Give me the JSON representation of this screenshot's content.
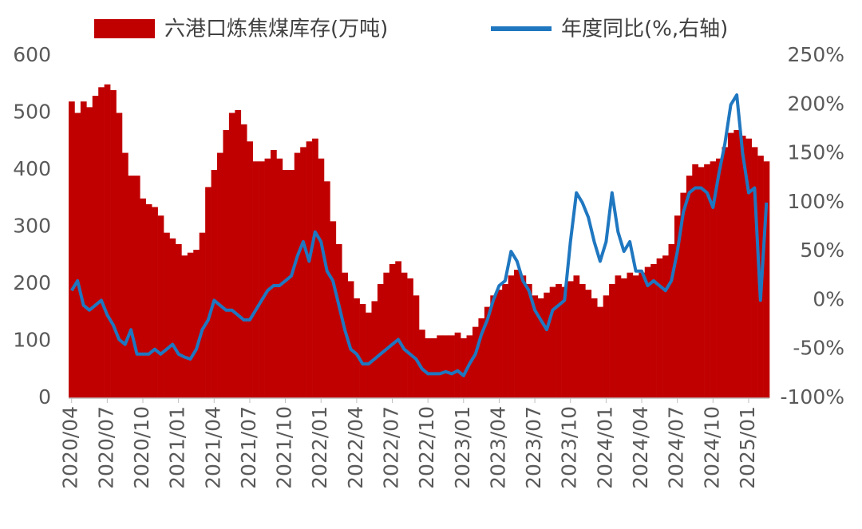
{
  "chart_data": {
    "type": "bar-line",
    "categories": [
      "2020/04",
      null,
      null,
      null,
      null,
      null,
      "2020/07",
      null,
      null,
      null,
      null,
      null,
      "2020/10",
      null,
      null,
      null,
      null,
      null,
      "2021/01",
      null,
      null,
      null,
      null,
      null,
      "2021/04",
      null,
      null,
      null,
      null,
      null,
      "2021/07",
      null,
      null,
      null,
      null,
      null,
      "2021/10",
      null,
      null,
      null,
      null,
      null,
      "2022/01",
      null,
      null,
      null,
      null,
      null,
      "2022/04",
      null,
      null,
      null,
      null,
      null,
      "2022/07",
      null,
      null,
      null,
      null,
      null,
      "2022/10",
      null,
      null,
      null,
      null,
      null,
      "2023/01",
      null,
      null,
      null,
      null,
      null,
      "2023/04",
      null,
      null,
      null,
      null,
      null,
      "2023/07",
      null,
      null,
      null,
      null,
      null,
      "2023/10",
      null,
      null,
      null,
      null,
      null,
      "2024/01",
      null,
      null,
      null,
      null,
      null,
      "2024/04",
      null,
      null,
      null,
      null,
      null,
      "2024/07",
      null,
      null,
      null,
      null,
      null,
      "2024/10",
      null,
      null,
      null,
      null,
      null,
      "2025/01",
      null,
      null,
      null
    ],
    "series": [
      {
        "name": "六港口炼焦煤库存(万吨)",
        "type": "bar",
        "color": "#c00000",
        "values": [
          520,
          500,
          520,
          510,
          530,
          545,
          550,
          540,
          500,
          430,
          390,
          390,
          350,
          340,
          335,
          320,
          290,
          280,
          270,
          250,
          255,
          260,
          290,
          370,
          400,
          430,
          470,
          500,
          505,
          480,
          450,
          415,
          415,
          420,
          435,
          420,
          400,
          400,
          430,
          440,
          450,
          455,
          420,
          380,
          310,
          270,
          220,
          205,
          175,
          165,
          150,
          170,
          200,
          220,
          235,
          240,
          220,
          210,
          180,
          120,
          105,
          105,
          110,
          110,
          110,
          115,
          105,
          110,
          125,
          140,
          160,
          180,
          190,
          200,
          215,
          225,
          215,
          200,
          180,
          175,
          185,
          195,
          200,
          195,
          205,
          215,
          200,
          190,
          175,
          160,
          180,
          200,
          215,
          210,
          220,
          215,
          220,
          230,
          235,
          245,
          250,
          270,
          320,
          360,
          390,
          410,
          405,
          410,
          415,
          420,
          440,
          465,
          470,
          460,
          455,
          440,
          425,
          415
        ]
      },
      {
        "name": "年度同比(%,右轴)",
        "type": "line",
        "axis": "y2",
        "color": "#1f77c0",
        "values": [
          10,
          20,
          -5,
          -10,
          -5,
          0,
          -15,
          -25,
          -40,
          -45,
          -30,
          -55,
          -55,
          -55,
          -50,
          -55,
          -50,
          -45,
          -55,
          -58,
          -60,
          -50,
          -30,
          -20,
          0,
          -5,
          -10,
          -10,
          -15,
          -20,
          -20,
          -10,
          0,
          10,
          15,
          15,
          20,
          25,
          45,
          60,
          40,
          70,
          60,
          30,
          20,
          -5,
          -30,
          -50,
          -55,
          -65,
          -65,
          -60,
          -55,
          -50,
          -45,
          -40,
          -50,
          -55,
          -60,
          -70,
          -75,
          -75,
          -75,
          -73,
          -75,
          -72,
          -77,
          -65,
          -55,
          -35,
          -20,
          0,
          15,
          20,
          50,
          40,
          20,
          10,
          -10,
          -20,
          -30,
          -10,
          -5,
          0,
          60,
          110,
          100,
          85,
          60,
          40,
          60,
          110,
          70,
          50,
          60,
          30,
          30,
          15,
          20,
          15,
          10,
          20,
          50,
          90,
          110,
          115,
          115,
          110,
          95,
          130,
          160,
          200,
          210,
          150,
          110,
          115,
          0,
          100
        ]
      }
    ],
    "ylim": [
      0,
      600
    ],
    "yticks": [
      0,
      100,
      200,
      300,
      400,
      500,
      600
    ],
    "y2lim": [
      -100,
      250
    ],
    "y2ticks": [
      {
        "value": -100,
        "label": "-100%"
      },
      {
        "value": -50,
        "label": "-50%"
      },
      {
        "value": 0,
        "label": "0%"
      },
      {
        "value": 50,
        "label": "50%"
      },
      {
        "value": 100,
        "label": "100%"
      },
      {
        "value": 150,
        "label": "150%"
      },
      {
        "value": 200,
        "label": "200%"
      },
      {
        "value": 250,
        "label": "250%"
      }
    ],
    "grid": false,
    "legend": "top"
  }
}
